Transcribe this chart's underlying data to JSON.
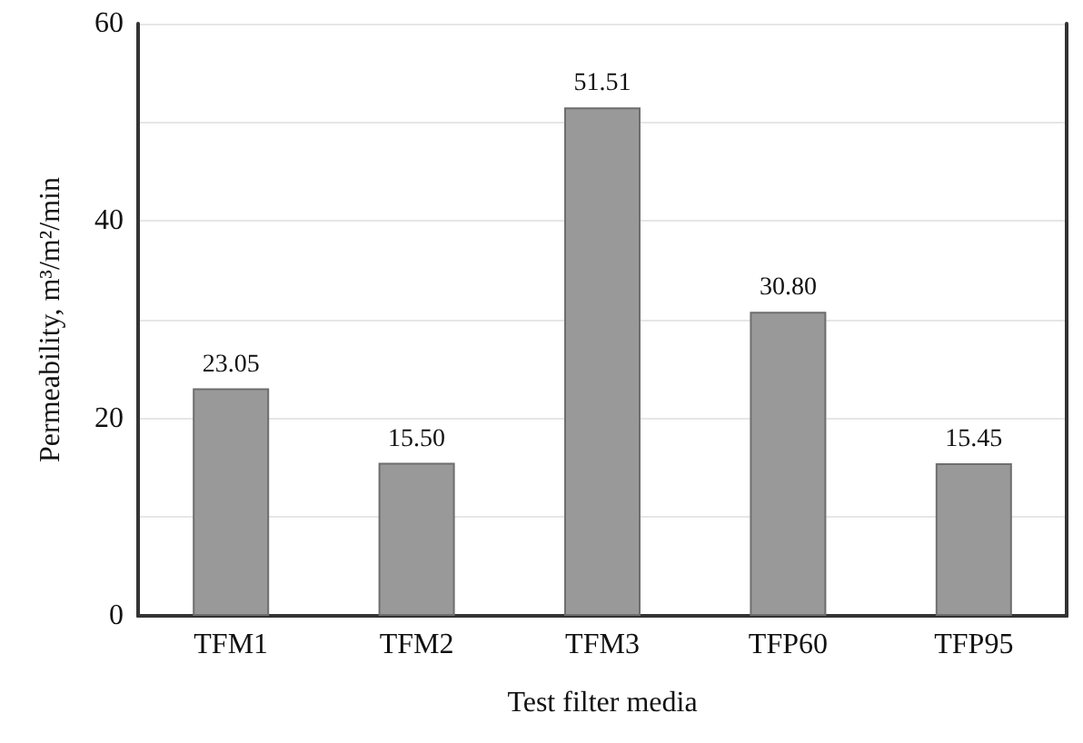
{
  "chart_data": {
    "type": "bar",
    "xlabel": "Test filter media",
    "ylabel": "Permeability, m³/m²/min",
    "categories": [
      "TFM1",
      "TFM2",
      "TFM3",
      "TFP60",
      "TFP95"
    ],
    "values": [
      23.05,
      15.5,
      51.51,
      30.8,
      15.45
    ],
    "value_labels": [
      "23.05",
      "15.50",
      "51.51",
      "30.80",
      "15.45"
    ],
    "color": "#999999",
    "ylim": [
      0,
      60
    ],
    "yticks": [
      0,
      {
        "value": 10,
        "label": null
      },
      20,
      {
        "value": 30,
        "label": null
      },
      40,
      {
        "value": 50,
        "label": null
      },
      60
    ],
    "grid": "y"
  }
}
